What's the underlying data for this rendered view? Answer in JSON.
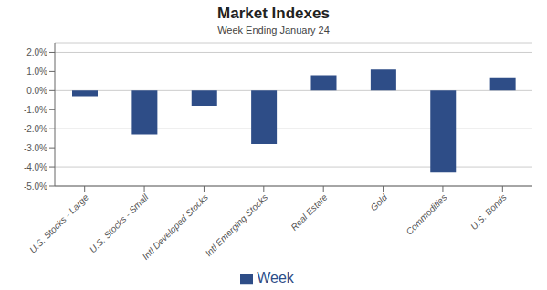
{
  "chart_data": {
    "type": "bar",
    "title": "Market Indexes",
    "subtitle": "Week Ending January 24",
    "categories": [
      "U.S. Stocks - Large",
      "U.S. Stocks - Small",
      "Intl Developed Stocks",
      "Intl Emerging Stocks",
      "Real Estate",
      "Gold",
      "Commodities",
      "U.S. Bonds"
    ],
    "series": [
      {
        "name": "Week",
        "color": "#2E4D87",
        "values": [
          -0.003,
          -0.023,
          -0.008,
          -0.028,
          0.008,
          0.011,
          -0.043,
          0.007
        ]
      }
    ],
    "ylim": [
      -0.05,
      0.025
    ],
    "yticks": [
      {
        "value": -0.05,
        "label": "-5.0%"
      },
      {
        "value": -0.04,
        "label": "-4.0%"
      },
      {
        "value": -0.03,
        "label": "-3.0%"
      },
      {
        "value": -0.02,
        "label": "-2.0%"
      },
      {
        "value": -0.01,
        "label": "-1.0%"
      },
      {
        "value": 0.0,
        "label": "0.0%"
      },
      {
        "value": 0.01,
        "label": "1.0%"
      },
      {
        "value": 0.02,
        "label": "2.0%"
      }
    ],
    "grid": true,
    "legend": "bottom"
  }
}
